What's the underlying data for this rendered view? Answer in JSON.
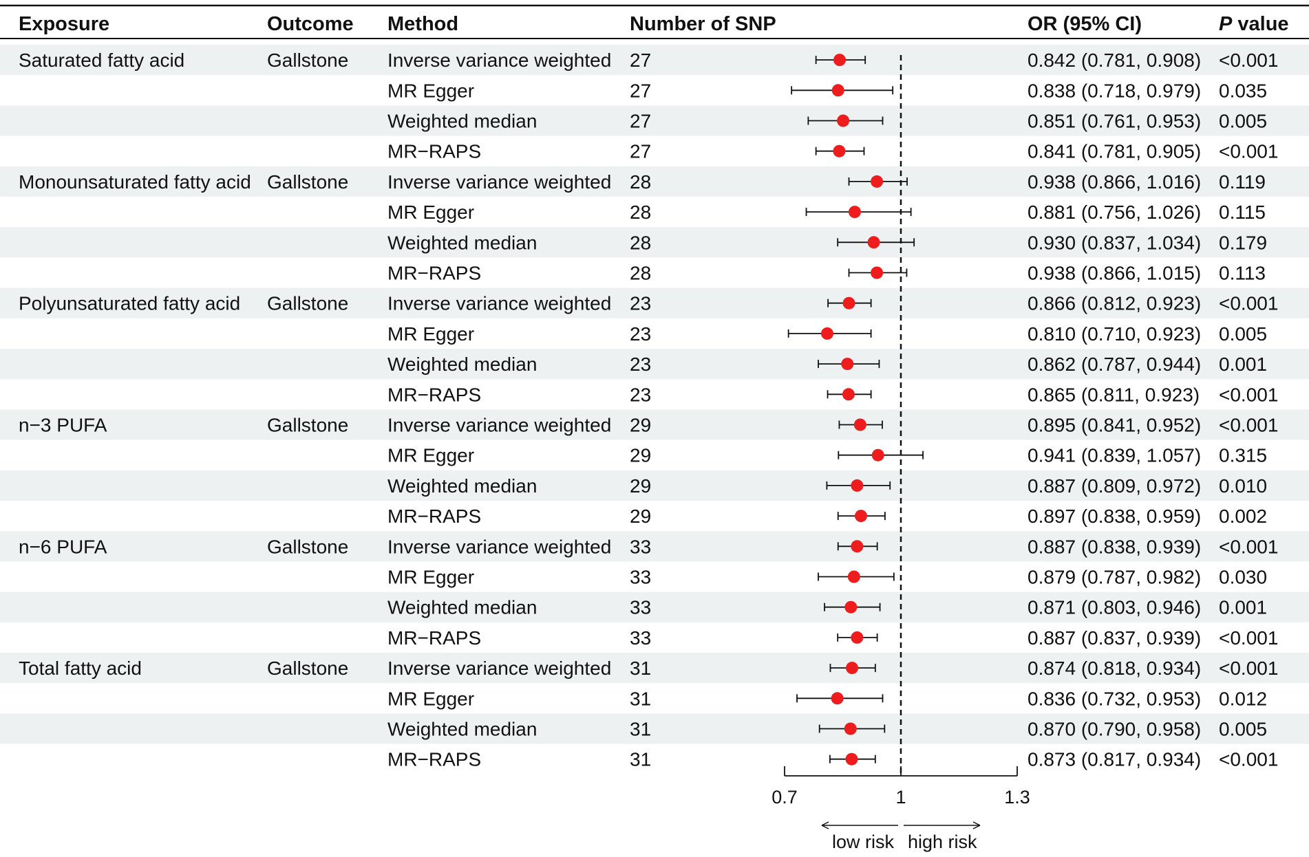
{
  "headers": {
    "exposure": "Exposure",
    "outcome": "Outcome",
    "method": "Method",
    "nsnp": "Number of SNP",
    "or": "OR (95% CI)",
    "p_italic": "P",
    "p_rest": " value"
  },
  "axis": {
    "ticks": [
      "0.7",
      "1",
      "1.3"
    ],
    "low_label": "low risk",
    "high_label": "high risk"
  },
  "colors": {
    "point": "#ee1c1c",
    "stripe": "#eef1f1",
    "text": "#111111"
  },
  "rows": [
    {
      "exposure": "Saturated fatty acid",
      "outcome": "Gallstone",
      "method": "Inverse variance weighted",
      "nsnp": "27",
      "or_text": "0.842 (0.781, 0.908)",
      "p": "<0.001"
    },
    {
      "exposure": "",
      "outcome": "",
      "method": "MR Egger",
      "nsnp": "27",
      "or_text": "0.838 (0.718, 0.979)",
      "p": "0.035"
    },
    {
      "exposure": "",
      "outcome": "",
      "method": "Weighted median",
      "nsnp": "27",
      "or_text": "0.851 (0.761, 0.953)",
      "p": "0.005"
    },
    {
      "exposure": "",
      "outcome": "",
      "method": "MR−RAPS",
      "nsnp": "27",
      "or_text": "0.841 (0.781, 0.905)",
      "p": "<0.001"
    },
    {
      "exposure": "Monounsaturated fatty acid",
      "outcome": "Gallstone",
      "method": "Inverse variance weighted",
      "nsnp": "28",
      "or_text": "0.938 (0.866, 1.016)",
      "p": "0.119"
    },
    {
      "exposure": "",
      "outcome": "",
      "method": "MR Egger",
      "nsnp": "28",
      "or_text": "0.881 (0.756, 1.026)",
      "p": "0.115"
    },
    {
      "exposure": "",
      "outcome": "",
      "method": "Weighted median",
      "nsnp": "28",
      "or_text": "0.930 (0.837, 1.034)",
      "p": "0.179"
    },
    {
      "exposure": "",
      "outcome": "",
      "method": "MR−RAPS",
      "nsnp": "28",
      "or_text": "0.938 (0.866, 1.015)",
      "p": "0.113"
    },
    {
      "exposure": "Polyunsaturated fatty acid",
      "outcome": "Gallstone",
      "method": "Inverse variance weighted",
      "nsnp": "23",
      "or_text": "0.866 (0.812, 0.923)",
      "p": "<0.001"
    },
    {
      "exposure": "",
      "outcome": "",
      "method": "MR Egger",
      "nsnp": "23",
      "or_text": "0.810 (0.710, 0.923)",
      "p": "0.005"
    },
    {
      "exposure": "",
      "outcome": "",
      "method": "Weighted median",
      "nsnp": "23",
      "or_text": "0.862 (0.787, 0.944)",
      "p": "0.001"
    },
    {
      "exposure": "",
      "outcome": "",
      "method": "MR−RAPS",
      "nsnp": "23",
      "or_text": "0.865 (0.811, 0.923)",
      "p": "<0.001"
    },
    {
      "exposure": "n−3 PUFA",
      "outcome": "Gallstone",
      "method": "Inverse variance weighted",
      "nsnp": "29",
      "or_text": "0.895 (0.841, 0.952)",
      "p": "<0.001"
    },
    {
      "exposure": "",
      "outcome": "",
      "method": "MR Egger",
      "nsnp": "29",
      "or_text": "0.941 (0.839, 1.057)",
      "p": "0.315"
    },
    {
      "exposure": "",
      "outcome": "",
      "method": "Weighted median",
      "nsnp": "29",
      "or_text": "0.887 (0.809, 0.972)",
      "p": "0.010"
    },
    {
      "exposure": "",
      "outcome": "",
      "method": "MR−RAPS",
      "nsnp": "29",
      "or_text": "0.897 (0.838, 0.959)",
      "p": "0.002"
    },
    {
      "exposure": "n−6 PUFA",
      "outcome": "Gallstone",
      "method": "Inverse variance weighted",
      "nsnp": "33",
      "or_text": "0.887 (0.838, 0.939)",
      "p": "<0.001"
    },
    {
      "exposure": "",
      "outcome": "",
      "method": "MR Egger",
      "nsnp": "33",
      "or_text": "0.879 (0.787, 0.982)",
      "p": "0.030"
    },
    {
      "exposure": "",
      "outcome": "",
      "method": "Weighted median",
      "nsnp": "33",
      "or_text": "0.871 (0.803, 0.946)",
      "p": "0.001"
    },
    {
      "exposure": "",
      "outcome": "",
      "method": "MR−RAPS",
      "nsnp": "33",
      "or_text": "0.887 (0.837, 0.939)",
      "p": "<0.001"
    },
    {
      "exposure": "Total fatty acid",
      "outcome": "Gallstone",
      "method": "Inverse variance weighted",
      "nsnp": "31",
      "or_text": "0.874 (0.818, 0.934)",
      "p": "<0.001"
    },
    {
      "exposure": "",
      "outcome": "",
      "method": "MR Egger",
      "nsnp": "31",
      "or_text": "0.836 (0.732, 0.953)",
      "p": "0.012"
    },
    {
      "exposure": "",
      "outcome": "",
      "method": "Weighted median",
      "nsnp": "31",
      "or_text": "0.870 (0.790, 0.958)",
      "p": "0.005"
    },
    {
      "exposure": "",
      "outcome": "",
      "method": "MR−RAPS",
      "nsnp": "31",
      "or_text": "0.873 (0.817, 0.934)",
      "p": "<0.001"
    }
  ],
  "chart_data": {
    "type": "forest",
    "xlabel": "",
    "xlim": [
      0.7,
      1.3
    ],
    "xticks": [
      0.7,
      1,
      1.3
    ],
    "reference_line": 1,
    "categories": [
      "Saturated fatty acid | Inverse variance weighted",
      "Saturated fatty acid | MR Egger",
      "Saturated fatty acid | Weighted median",
      "Saturated fatty acid | MR−RAPS",
      "Monounsaturated fatty acid | Inverse variance weighted",
      "Monounsaturated fatty acid | MR Egger",
      "Monounsaturated fatty acid | Weighted median",
      "Monounsaturated fatty acid | MR−RAPS",
      "Polyunsaturated fatty acid | Inverse variance weighted",
      "Polyunsaturated fatty acid | MR Egger",
      "Polyunsaturated fatty acid | Weighted median",
      "Polyunsaturated fatty acid | MR−RAPS",
      "n−3 PUFA | Inverse variance weighted",
      "n−3 PUFA | MR Egger",
      "n−3 PUFA | Weighted median",
      "n−3 PUFA | MR−RAPS",
      "n−6 PUFA | Inverse variance weighted",
      "n−6 PUFA | MR Egger",
      "n−6 PUFA | Weighted median",
      "n−6 PUFA | MR−RAPS",
      "Total fatty acid | Inverse variance weighted",
      "Total fatty acid | MR Egger",
      "Total fatty acid | Weighted median",
      "Total fatty acid | MR−RAPS"
    ],
    "or": [
      0.842,
      0.838,
      0.851,
      0.841,
      0.938,
      0.881,
      0.93,
      0.938,
      0.866,
      0.81,
      0.862,
      0.865,
      0.895,
      0.941,
      0.887,
      0.897,
      0.887,
      0.879,
      0.871,
      0.887,
      0.874,
      0.836,
      0.87,
      0.873
    ],
    "lower": [
      0.781,
      0.718,
      0.761,
      0.781,
      0.866,
      0.756,
      0.837,
      0.866,
      0.812,
      0.71,
      0.787,
      0.811,
      0.841,
      0.839,
      0.809,
      0.838,
      0.838,
      0.787,
      0.803,
      0.837,
      0.818,
      0.732,
      0.79,
      0.817
    ],
    "upper": [
      0.908,
      0.979,
      0.953,
      0.905,
      1.016,
      1.026,
      1.034,
      1.015,
      0.923,
      0.923,
      0.944,
      0.923,
      0.952,
      1.057,
      0.972,
      0.959,
      0.939,
      0.982,
      0.946,
      0.939,
      0.934,
      0.953,
      0.958,
      0.934
    ]
  }
}
